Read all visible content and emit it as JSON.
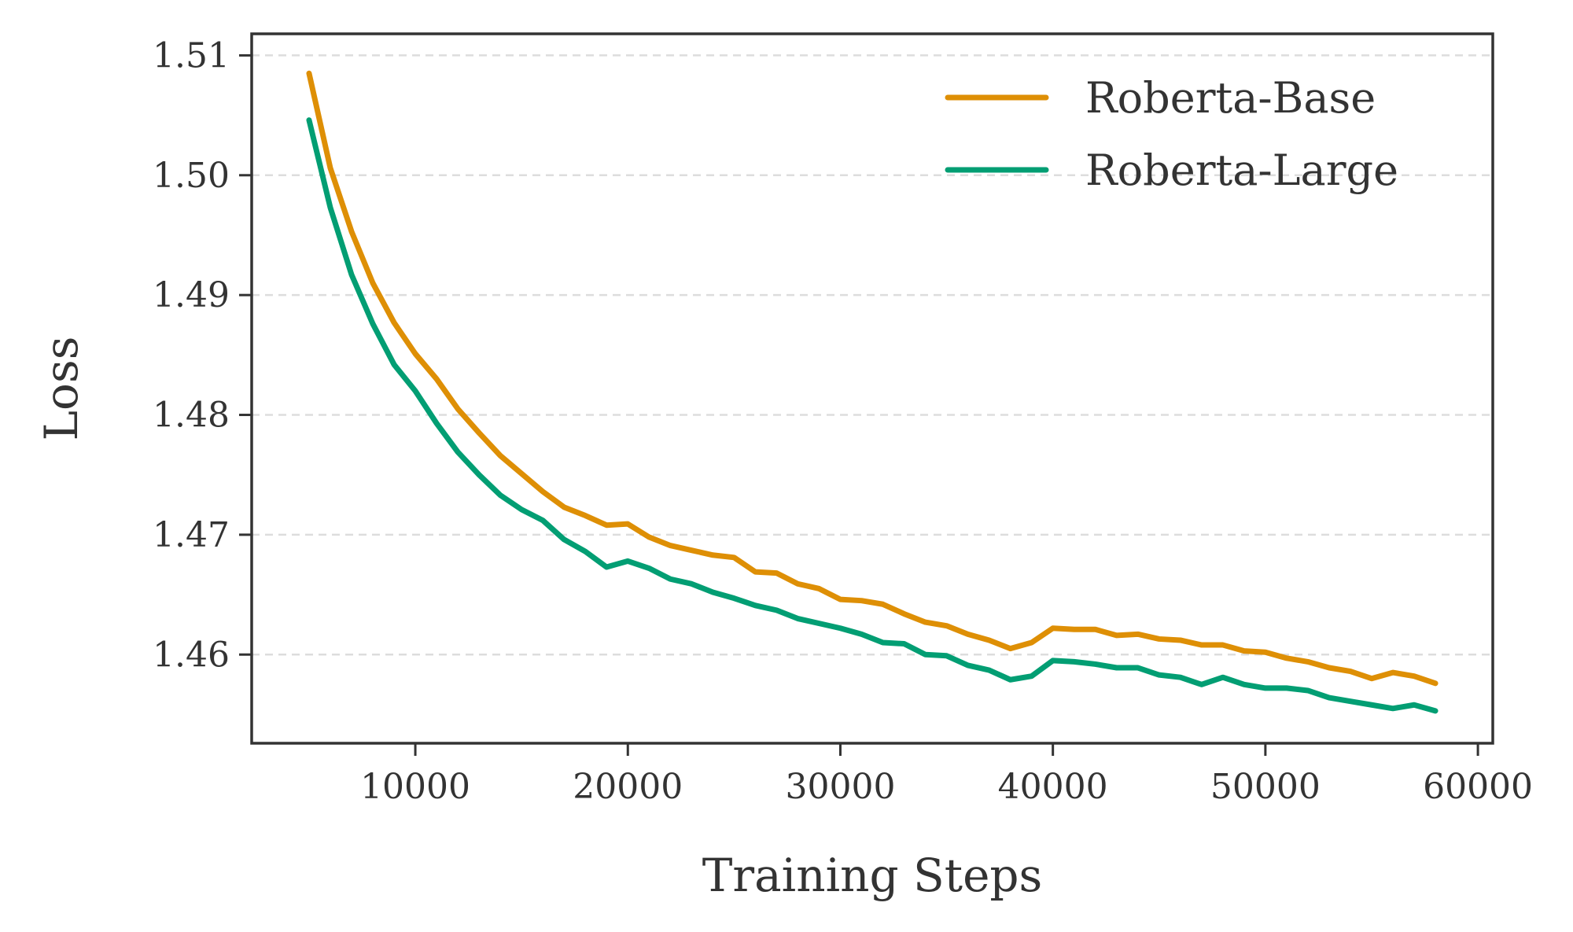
{
  "chart_data": {
    "type": "line",
    "title": "",
    "xlabel": "Training Steps",
    "ylabel": "Loss",
    "xlim": [
      2300,
      60700
    ],
    "ylim": [
      1.4526,
      1.5118
    ],
    "xticks": [
      10000,
      20000,
      30000,
      40000,
      50000,
      60000
    ],
    "xtick_labels": [
      "10000",
      "20000",
      "30000",
      "40000",
      "50000",
      "60000"
    ],
    "yticks": [
      1.46,
      1.47,
      1.48,
      1.49,
      1.5,
      1.51
    ],
    "ytick_labels": [
      "1.46",
      "1.47",
      "1.48",
      "1.49",
      "1.50",
      "1.51"
    ],
    "grid": "horizontal dashed",
    "legend_position": "top-right",
    "x": [
      5000,
      6000,
      7000,
      8000,
      9000,
      10000,
      11000,
      12000,
      13000,
      14000,
      15000,
      16000,
      17000,
      18000,
      19000,
      20000,
      21000,
      22000,
      23000,
      24000,
      25000,
      26000,
      27000,
      28000,
      29000,
      30000,
      31000,
      32000,
      33000,
      34000,
      35000,
      36000,
      37000,
      38000,
      39000,
      40000,
      41000,
      42000,
      43000,
      44000,
      45000,
      46000,
      47000,
      48000,
      49000,
      50000,
      51000,
      52000,
      53000,
      54000,
      55000,
      56000,
      57000,
      58000
    ],
    "series": [
      {
        "name": "Roberta-Base",
        "color": "#DE8F05",
        "values": [
          1.5085,
          1.5006,
          1.4953,
          1.491,
          1.4877,
          1.4851,
          1.483,
          1.4805,
          1.4785,
          1.4766,
          1.4751,
          1.4736,
          1.4723,
          1.4716,
          1.4708,
          1.4709,
          1.4698,
          1.4691,
          1.4687,
          1.4683,
          1.4681,
          1.4669,
          1.4668,
          1.4659,
          1.4655,
          1.4646,
          1.4645,
          1.4642,
          1.4634,
          1.4627,
          1.4624,
          1.4617,
          1.4612,
          1.4605,
          1.461,
          1.4622,
          1.4621,
          1.4621,
          1.4616,
          1.4617,
          1.4613,
          1.4612,
          1.4608,
          1.4608,
          1.4603,
          1.4602,
          1.4597,
          1.4594,
          1.4589,
          1.4586,
          1.458,
          1.4585,
          1.4582,
          1.4576
        ]
      },
      {
        "name": "Roberta-Large",
        "color": "#029E73",
        "values": [
          1.5046,
          1.4973,
          1.4917,
          1.4876,
          1.4842,
          1.482,
          1.4793,
          1.4769,
          1.475,
          1.4733,
          1.4721,
          1.4712,
          1.4696,
          1.4686,
          1.4673,
          1.4678,
          1.4672,
          1.4663,
          1.4659,
          1.4652,
          1.4647,
          1.4641,
          1.4637,
          1.463,
          1.4626,
          1.4622,
          1.4617,
          1.461,
          1.4609,
          1.46,
          1.4599,
          1.4591,
          1.4587,
          1.4579,
          1.4582,
          1.4595,
          1.4594,
          1.4592,
          1.4589,
          1.4589,
          1.4583,
          1.4581,
          1.4575,
          1.4581,
          1.4575,
          1.4572,
          1.4572,
          1.457,
          1.4564,
          1.4561,
          1.4558,
          1.4555,
          1.4558,
          1.4553
        ]
      }
    ]
  }
}
